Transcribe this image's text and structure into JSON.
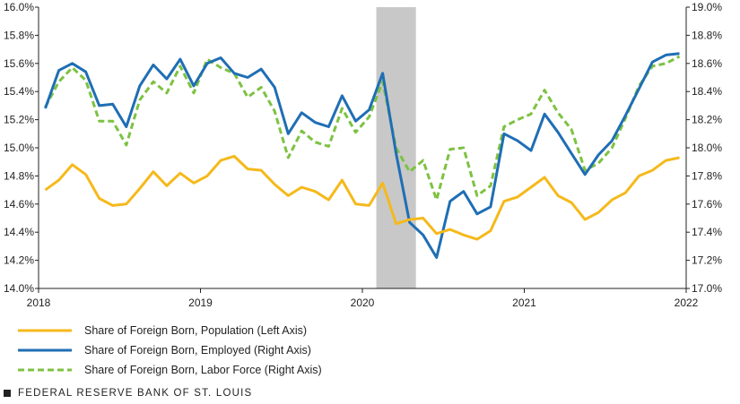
{
  "chart_data": {
    "type": "line",
    "x_ticks": [
      "2018",
      "2019",
      "2020",
      "2021",
      "2022"
    ],
    "left_axis": {
      "min": 14.0,
      "max": 16.0,
      "step": 0.2,
      "tick_labels": [
        "14.0%",
        "14.2%",
        "14.4%",
        "14.6%",
        "14.8%",
        "15.0%",
        "15.2%",
        "15.4%",
        "15.6%",
        "15.8%",
        "16.0%"
      ]
    },
    "right_axis": {
      "min": 17.0,
      "max": 19.0,
      "step": 0.2,
      "tick_labels": [
        "17.0%",
        "17.2%",
        "17.4%",
        "17.6%",
        "17.8%",
        "18.0%",
        "18.2%",
        "18.4%",
        "18.6%",
        "18.8%",
        "19.0%"
      ]
    },
    "recession": {
      "start": "2020-02",
      "end": "2020-04",
      "color": "#c8c8c8"
    },
    "months": [
      "2018-01",
      "2018-02",
      "2018-03",
      "2018-04",
      "2018-05",
      "2018-06",
      "2018-07",
      "2018-08",
      "2018-09",
      "2018-10",
      "2018-11",
      "2018-12",
      "2019-01",
      "2019-02",
      "2019-03",
      "2019-04",
      "2019-05",
      "2019-06",
      "2019-07",
      "2019-08",
      "2019-09",
      "2019-10",
      "2019-11",
      "2019-12",
      "2020-01",
      "2020-02",
      "2020-03",
      "2020-04",
      "2020-05",
      "2020-06",
      "2020-07",
      "2020-08",
      "2020-09",
      "2020-10",
      "2020-11",
      "2020-12",
      "2021-01",
      "2021-02",
      "2021-03",
      "2021-04",
      "2021-05",
      "2021-06",
      "2021-07",
      "2021-08",
      "2021-09",
      "2021-10",
      "2021-11",
      "2021-12"
    ],
    "series": [
      {
        "name": "Share of Foreign Born, Population (Left Axis)",
        "axis": "left",
        "color": "#f5b91b",
        "dash": "",
        "values": [
          14.7,
          14.77,
          14.88,
          14.81,
          14.64,
          14.59,
          14.6,
          14.71,
          14.83,
          14.73,
          14.82,
          14.75,
          14.8,
          14.91,
          14.94,
          14.85,
          14.84,
          14.74,
          14.66,
          14.72,
          14.69,
          14.63,
          14.77,
          14.6,
          14.59,
          14.75,
          14.46,
          14.49,
          14.5,
          14.39,
          14.42,
          14.38,
          14.35,
          14.41,
          14.62,
          14.65,
          14.72,
          14.79,
          14.66,
          14.61,
          14.49,
          14.54,
          14.63,
          14.68,
          14.8,
          14.84,
          14.91,
          14.93
        ]
      },
      {
        "name": "Share of Foreign Born, Employed (Right Axis)",
        "axis": "right",
        "color": "#1f6eb4",
        "dash": "",
        "values": [
          18.28,
          18.55,
          18.6,
          18.54,
          18.3,
          18.31,
          18.15,
          18.44,
          18.59,
          18.49,
          18.63,
          18.44,
          18.6,
          18.64,
          18.53,
          18.5,
          18.56,
          18.43,
          18.1,
          18.25,
          18.18,
          18.15,
          18.37,
          18.19,
          18.27,
          18.53,
          17.96,
          17.47,
          17.38,
          17.22,
          17.62,
          17.69,
          17.53,
          17.58,
          18.1,
          18.05,
          17.98,
          18.24,
          18.11,
          17.96,
          17.81,
          17.95,
          18.05,
          18.23,
          18.42,
          18.61,
          18.66,
          18.67
        ]
      },
      {
        "name": "Share of Foreign Born, Labor Force (Right Axis)",
        "axis": "right",
        "color": "#7dc242",
        "dash": "7 4",
        "values": [
          18.29,
          18.47,
          18.57,
          18.48,
          18.19,
          18.19,
          18.02,
          18.34,
          18.47,
          18.39,
          18.58,
          18.39,
          18.63,
          18.57,
          18.53,
          18.36,
          18.43,
          18.26,
          17.93,
          18.12,
          18.04,
          18.01,
          18.28,
          18.11,
          18.22,
          18.47,
          18.0,
          17.83,
          17.91,
          17.63,
          17.99,
          18.0,
          17.66,
          17.73,
          18.15,
          18.2,
          18.24,
          18.41,
          18.25,
          18.13,
          17.84,
          17.89,
          18.0,
          18.21,
          18.44,
          18.58,
          18.6,
          18.65
        ]
      }
    ]
  },
  "footer": {
    "source": "FEDERAL RESERVE BANK OF ST. LOUIS"
  }
}
